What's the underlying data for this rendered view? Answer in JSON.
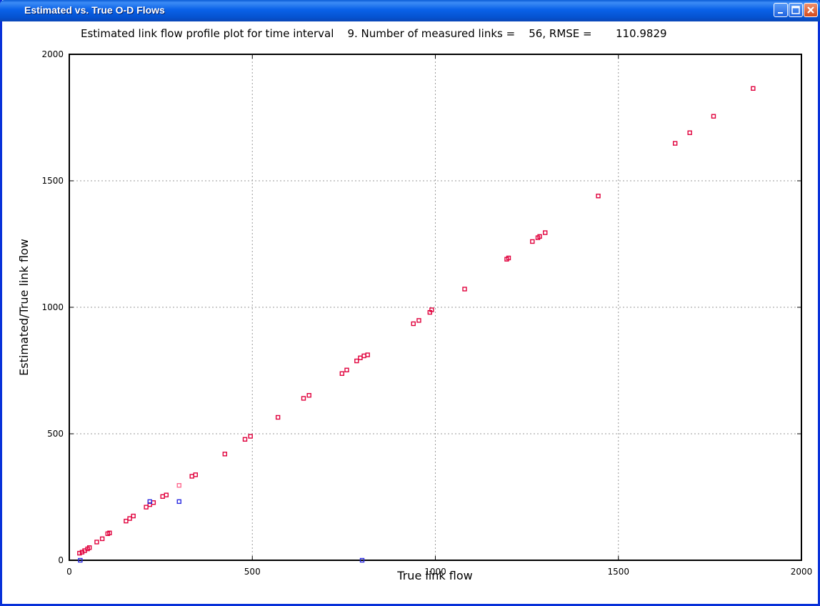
{
  "window": {
    "title": "Estimated vs. True O-D Flows",
    "buttons": {
      "minimize": "minimize",
      "maximize": "maximize",
      "close": "close"
    }
  },
  "header": {
    "text": "Estimated link flow profile plot for time interval    9. Number of measured links =    56, RMSE =       110.9829"
  },
  "colors": {
    "estimated_marker": "#e0003c",
    "blue_marker": "#2a2ae0",
    "pink_marker": "#ff6a90",
    "grid": "#9a9a9a",
    "titlebar": "#0a5bd6"
  },
  "chart_data": {
    "type": "scatter",
    "title": "",
    "xlabel": "True link flow",
    "ylabel": "Estimated/True link flow",
    "xlim": [
      0,
      2000
    ],
    "ylim": [
      0,
      2000
    ],
    "xticks": [
      0,
      500,
      1000,
      1500,
      2000
    ],
    "yticks": [
      0,
      500,
      1000,
      1500,
      2000
    ],
    "xtick_labels": [
      "0",
      "500",
      "1000",
      "1500",
      "2000"
    ],
    "ytick_labels": [
      "0",
      "500",
      "1000",
      "1500",
      "2000"
    ],
    "grid": true,
    "series": [
      {
        "marker": "square",
        "color": "#e0003c",
        "points": [
          [
            28,
            28
          ],
          [
            35,
            32
          ],
          [
            42,
            38
          ],
          [
            50,
            45
          ],
          [
            55,
            50
          ],
          [
            75,
            72
          ],
          [
            90,
            85
          ],
          [
            105,
            105
          ],
          [
            110,
            108
          ],
          [
            155,
            155
          ],
          [
            165,
            165
          ],
          [
            175,
            175
          ],
          [
            210,
            210
          ],
          [
            220,
            220
          ],
          [
            230,
            228
          ],
          [
            255,
            252
          ],
          [
            265,
            258
          ],
          [
            335,
            332
          ],
          [
            345,
            338
          ],
          [
            425,
            420
          ],
          [
            480,
            478
          ],
          [
            495,
            490
          ],
          [
            570,
            565
          ],
          [
            640,
            640
          ],
          [
            655,
            652
          ],
          [
            745,
            738
          ],
          [
            758,
            752
          ],
          [
            785,
            788
          ],
          [
            795,
            800
          ],
          [
            805,
            808
          ],
          [
            815,
            812
          ],
          [
            940,
            935
          ],
          [
            955,
            948
          ],
          [
            985,
            980
          ],
          [
            990,
            990
          ],
          [
            1080,
            1072
          ],
          [
            1195,
            1190
          ],
          [
            1200,
            1195
          ],
          [
            1265,
            1260
          ],
          [
            1280,
            1275
          ],
          [
            1285,
            1280
          ],
          [
            1300,
            1295
          ],
          [
            1445,
            1440
          ],
          [
            1655,
            1648
          ],
          [
            1695,
            1690
          ],
          [
            1760,
            1755
          ],
          [
            1868,
            1865
          ]
        ]
      },
      {
        "marker": "square",
        "color": "#2a2ae0",
        "points": [
          [
            220,
            232
          ],
          [
            300,
            232
          ],
          [
            800,
            0
          ],
          [
            30,
            0
          ]
        ]
      },
      {
        "marker": "square",
        "color": "#ff6a90",
        "points": [
          [
            300,
            296
          ]
        ]
      }
    ]
  }
}
